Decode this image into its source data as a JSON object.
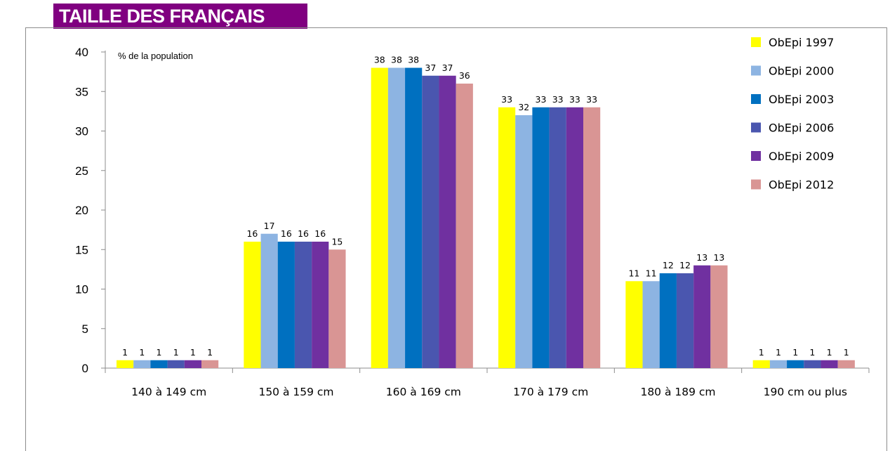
{
  "header": {
    "title": "TAILLE DES FRANÇAIS"
  },
  "chart_data": {
    "type": "bar",
    "title": "",
    "ylabel": "% de la population",
    "xlabel": "",
    "ylim": [
      0,
      40
    ],
    "yticks": [
      0,
      5,
      10,
      15,
      20,
      25,
      30,
      35,
      40
    ],
    "grid": false,
    "legend_position": "top-right",
    "categories": [
      "140 à 149 cm",
      "150 à 159 cm",
      "160 à 169 cm",
      "170 à 179 cm",
      "180 à 189 cm",
      "190 cm ou plus"
    ],
    "series": [
      {
        "name": "ObEpi 1997",
        "color": "#FFFF00",
        "values": [
          1,
          16,
          38,
          33,
          11,
          1
        ]
      },
      {
        "name": "ObEpi 2000",
        "color": "#8DB4E2",
        "values": [
          1,
          17,
          38,
          32,
          11,
          1
        ]
      },
      {
        "name": "ObEpi 2003",
        "color": "#0070C0",
        "values": [
          1,
          16,
          38,
          33,
          12,
          1
        ]
      },
      {
        "name": "ObEpi 2006",
        "color": "#4A56AF",
        "values": [
          1,
          16,
          37,
          33,
          12,
          1
        ]
      },
      {
        "name": "ObEpi 2009",
        "color": "#7030A0",
        "values": [
          1,
          16,
          37,
          33,
          13,
          1
        ]
      },
      {
        "name": "ObEpi 2012",
        "color": "#D99594",
        "values": [
          1,
          15,
          36,
          33,
          13,
          1
        ]
      }
    ]
  }
}
